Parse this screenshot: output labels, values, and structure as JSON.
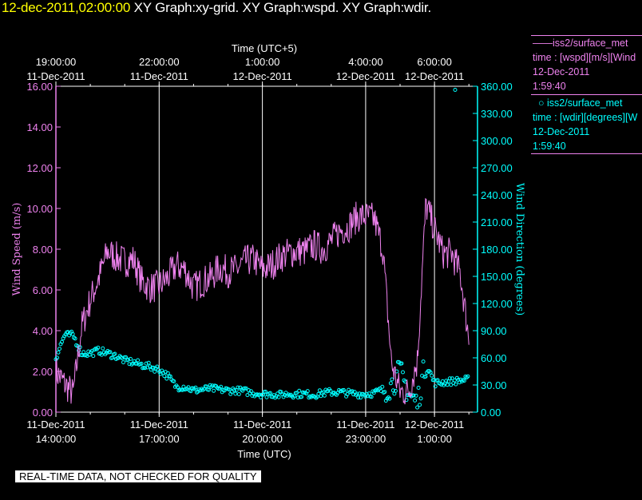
{
  "header": {
    "datetime": "12-dec-2011,02:00:00",
    "graphs": "XY Graph:xy-grid.  XY Graph:wspd.  XY Graph:wdir."
  },
  "legend": {
    "wspd": {
      "symbol": "——",
      "name": "iss2/surface_met",
      "line2": "time : [wspd][m/s][Wind",
      "line3": "12-Dec-2011",
      "line4": "1:59:40"
    },
    "wdir": {
      "symbol": "○",
      "name": "iss2/surface_met",
      "line2": "time : [wdir][degrees][W",
      "line3": "12-Dec-2011",
      "line4": "1:59:40"
    }
  },
  "note": "REAL-TIME DATA, NOT CHECKED FOR QUALITY",
  "colors": {
    "wspd": "#ee82ee",
    "wdir": "#00ffff",
    "axis_left": "#ee82ee",
    "axis_right": "#00ffff"
  },
  "chart_data": {
    "type": "line",
    "xlabel_bottom": "Time (UTC)",
    "xlabel_top": "Time (UTC+5)",
    "ylabel_left": "Wind Speed (m/s)",
    "ylabel_right": "Wind Direction (degrees)",
    "xlim_hours_utc": [
      14.0,
      2.25
    ],
    "x_unit": "hours UTC from 11-Dec-2011 00:00",
    "ylim_left": [
      0,
      16
    ],
    "ylim_right": [
      0,
      360
    ],
    "grid": "vertical",
    "bottom_ticks": [
      {
        "t": 14,
        "line1": "11-Dec-2011",
        "line2": "14:00:00"
      },
      {
        "t": 17,
        "line1": "11-Dec-2011",
        "line2": "17:00:00"
      },
      {
        "t": 20,
        "line1": "11-Dec-2011",
        "line2": "20:00:00"
      },
      {
        "t": 23,
        "line1": "11-Dec-2011",
        "line2": "23:00:00"
      },
      {
        "t": 25,
        "line1": "12-Dec-2011",
        "line2": "1:00:00"
      }
    ],
    "top_ticks": [
      {
        "t": 14,
        "line1": "19:00:00",
        "line2": "11-Dec-2011"
      },
      {
        "t": 17,
        "line1": "22:00:00",
        "line2": "11-Dec-2011"
      },
      {
        "t": 20,
        "line1": "1:00:00",
        "line2": "12-Dec-2011"
      },
      {
        "t": 23,
        "line1": "4:00:00",
        "line2": "12-Dec-2011"
      },
      {
        "t": 25,
        "line1": "6:00:00",
        "line2": "12-Dec-2011"
      }
    ],
    "left_ticks": [
      "0.00",
      "2.00",
      "4.00",
      "6.00",
      "8.00",
      "10.00",
      "12.00",
      "14.00",
      "16.00"
    ],
    "left_tick_values": [
      0,
      2,
      4,
      6,
      8,
      10,
      12,
      14,
      16
    ],
    "right_ticks": [
      "0.00",
      "30.00",
      "60.00",
      "90.00",
      "120.00",
      "150.00",
      "180.00",
      "210.00",
      "240.00",
      "270.00",
      "300.00",
      "330.00",
      "360.00"
    ],
    "right_tick_values": [
      0,
      30,
      60,
      90,
      120,
      150,
      180,
      210,
      240,
      270,
      300,
      330,
      360
    ],
    "series": [
      {
        "name": "iss2/surface_met",
        "variable": "wspd",
        "x_hours": [
          14.0,
          14.25,
          14.5,
          14.75,
          15.0,
          15.25,
          15.5,
          15.75,
          16.0,
          16.25,
          16.5,
          16.75,
          17.0,
          17.25,
          17.5,
          17.75,
          18.0,
          18.25,
          18.5,
          18.75,
          19.0,
          19.25,
          19.5,
          19.75,
          20.0,
          20.25,
          20.5,
          20.75,
          21.0,
          21.25,
          21.5,
          21.75,
          22.0,
          22.25,
          22.5,
          22.75,
          23.0,
          23.25,
          23.5,
          23.75,
          24.0,
          24.25,
          24.5,
          24.75,
          25.0,
          25.25,
          25.5,
          25.75,
          26.0
        ],
        "values": [
          2.0,
          1.4,
          0.9,
          4.2,
          5.5,
          6.6,
          7.9,
          7.6,
          7.4,
          7.5,
          6.4,
          6.1,
          6.2,
          6.6,
          7.2,
          7.0,
          6.1,
          6.4,
          6.6,
          7.1,
          6.9,
          7.0,
          7.4,
          7.5,
          7.0,
          7.2,
          7.6,
          7.8,
          7.9,
          7.9,
          8.2,
          8.0,
          8.4,
          8.9,
          9.1,
          9.6,
          9.6,
          9.5,
          8.0,
          2.4,
          1.0,
          1.0,
          2.5,
          10.2,
          9.0,
          7.8,
          7.8,
          6.8,
          3.6
        ]
      },
      {
        "name": "iss2/surface_met",
        "variable": "wdir",
        "x_hours": [
          14.0,
          14.25,
          14.5,
          14.75,
          15.0,
          15.25,
          15.5,
          15.75,
          16.0,
          16.25,
          16.5,
          16.75,
          17.0,
          17.25,
          17.5,
          17.75,
          18.0,
          18.25,
          18.5,
          18.75,
          19.0,
          19.25,
          19.5,
          19.75,
          20.0,
          20.25,
          20.5,
          20.75,
          21.0,
          21.25,
          21.5,
          21.75,
          22.0,
          22.25,
          22.5,
          22.75,
          23.0,
          23.25,
          23.5,
          23.75,
          24.0,
          24.25,
          24.5,
          24.75,
          25.0,
          25.25,
          25.5,
          25.75,
          26.0
        ],
        "values": [
          60,
          85,
          85,
          65,
          65,
          68,
          65,
          62,
          57,
          55,
          52,
          50,
          47,
          40,
          28,
          28,
          24,
          25,
          26,
          25,
          24,
          24,
          23,
          21,
          20,
          20,
          19,
          20,
          20,
          20,
          19,
          21,
          22,
          22,
          21,
          20,
          20,
          21,
          25,
          30,
          45,
          20,
          10,
          55,
          32,
          33,
          34,
          35,
          36
        ],
        "outlier": {
          "x_hours": 25.6,
          "value": 356
        }
      }
    ]
  }
}
